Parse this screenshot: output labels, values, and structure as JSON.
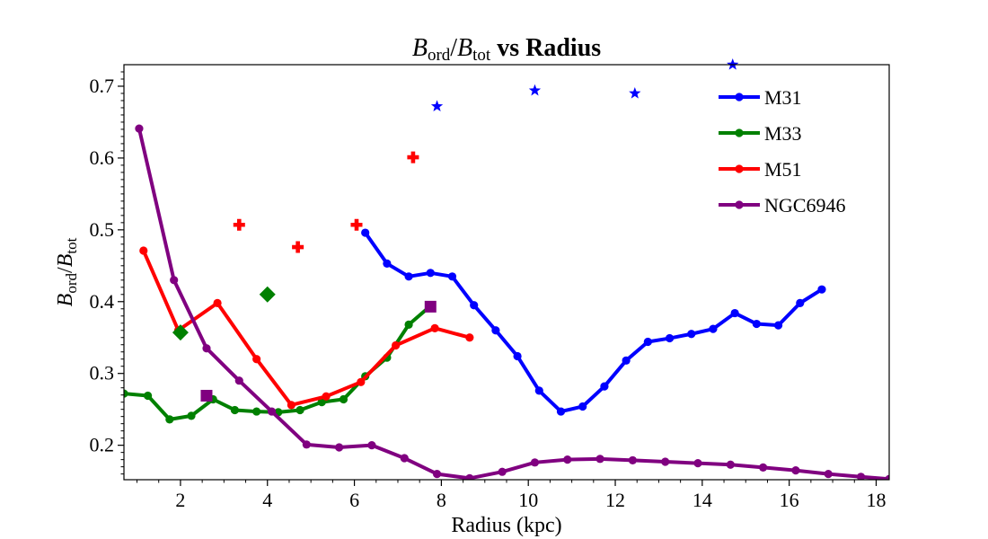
{
  "chart_data": {
    "type": "line",
    "title": {
      "b1": "B",
      "s1": "ord",
      "sep": "/",
      "b2": "B",
      "s2": "tot",
      "rest": " vs Radius"
    },
    "xlabel": "Radius (kpc)",
    "ylabel": {
      "b1": "B",
      "s1": "ord",
      "sep": "/",
      "b2": "B",
      "s2": "tot"
    },
    "xlim": [
      0.7,
      18.3
    ],
    "ylim": [
      0.152,
      0.73
    ],
    "xticks": [
      2,
      4,
      6,
      8,
      10,
      12,
      14,
      16,
      18
    ],
    "yticks": [
      0.2,
      0.3,
      0.4,
      0.5,
      0.6,
      0.7
    ],
    "xtick_labels": [
      "2",
      "4",
      "6",
      "8",
      "10",
      "12",
      "14",
      "16",
      "18"
    ],
    "ytick_labels": [
      "0.2",
      "0.3",
      "0.4",
      "0.5",
      "0.6",
      "0.7"
    ],
    "grid": false,
    "legend_position": "top-right",
    "series": [
      {
        "name": "M31",
        "color": "#0000ff",
        "x": [
          6.25,
          6.75,
          7.25,
          7.75,
          8.25,
          8.75,
          9.25,
          9.75,
          10.25,
          10.75,
          11.25,
          11.75,
          12.25,
          12.75,
          13.25,
          13.75,
          14.25,
          14.75,
          15.25,
          15.75,
          16.25,
          16.75
        ],
        "y": [
          0.496,
          0.453,
          0.435,
          0.44,
          0.435,
          0.395,
          0.36,
          0.324,
          0.276,
          0.247,
          0.254,
          0.282,
          0.318,
          0.344,
          0.349,
          0.355,
          0.362,
          0.384,
          0.369,
          0.367,
          0.398,
          0.417
        ],
        "extra_marker": "star",
        "extra_x": [
          7.9,
          10.15,
          12.45,
          14.7
        ],
        "extra_y": [
          0.672,
          0.694,
          0.69,
          0.73
        ]
      },
      {
        "name": "M33",
        "color": "#008000",
        "x": [
          0.7,
          1.25,
          1.75,
          2.25,
          2.75,
          3.25,
          3.75,
          4.25,
          4.75,
          5.25,
          5.75,
          6.25,
          6.75,
          7.25,
          7.75
        ],
        "y": [
          0.272,
          0.269,
          0.236,
          0.241,
          0.264,
          0.249,
          0.247,
          0.246,
          0.249,
          0.26,
          0.264,
          0.296,
          0.322,
          0.368,
          0.394
        ],
        "extra_marker": "diamond",
        "extra_x": [
          2.0,
          4.0
        ],
        "extra_y": [
          0.357,
          0.41
        ]
      },
      {
        "name": "M51",
        "color": "#ff0000",
        "x": [
          1.15,
          1.95,
          2.85,
          3.75,
          4.55,
          5.35,
          6.15,
          6.95,
          7.85,
          8.65
        ],
        "y": [
          0.471,
          0.36,
          0.398,
          0.32,
          0.256,
          0.268,
          0.288,
          0.339,
          0.363,
          0.35
        ],
        "extra_marker": "plus",
        "extra_x": [
          3.35,
          4.7,
          6.05,
          7.35
        ],
        "extra_y": [
          0.507,
          0.476,
          0.507,
          0.601
        ]
      },
      {
        "name": "NGC6946",
        "color": "#800080",
        "x": [
          1.05,
          1.85,
          2.6,
          3.35,
          4.1,
          4.9,
          5.65,
          6.4,
          7.15,
          7.9,
          8.65,
          9.4,
          10.15,
          10.9,
          11.65,
          12.4,
          13.15,
          13.9,
          14.65,
          15.4,
          16.15,
          16.9,
          17.65,
          18.3
        ],
        "y": [
          0.641,
          0.43,
          0.335,
          0.29,
          0.247,
          0.201,
          0.197,
          0.2,
          0.182,
          0.16,
          0.154,
          0.163,
          0.176,
          0.18,
          0.181,
          0.179,
          0.177,
          0.175,
          0.173,
          0.169,
          0.165,
          0.16,
          0.156,
          0.153
        ],
        "extra_marker": "square",
        "extra_x": [
          2.6,
          7.75
        ],
        "extra_y": [
          0.269,
          0.393
        ]
      }
    ]
  }
}
